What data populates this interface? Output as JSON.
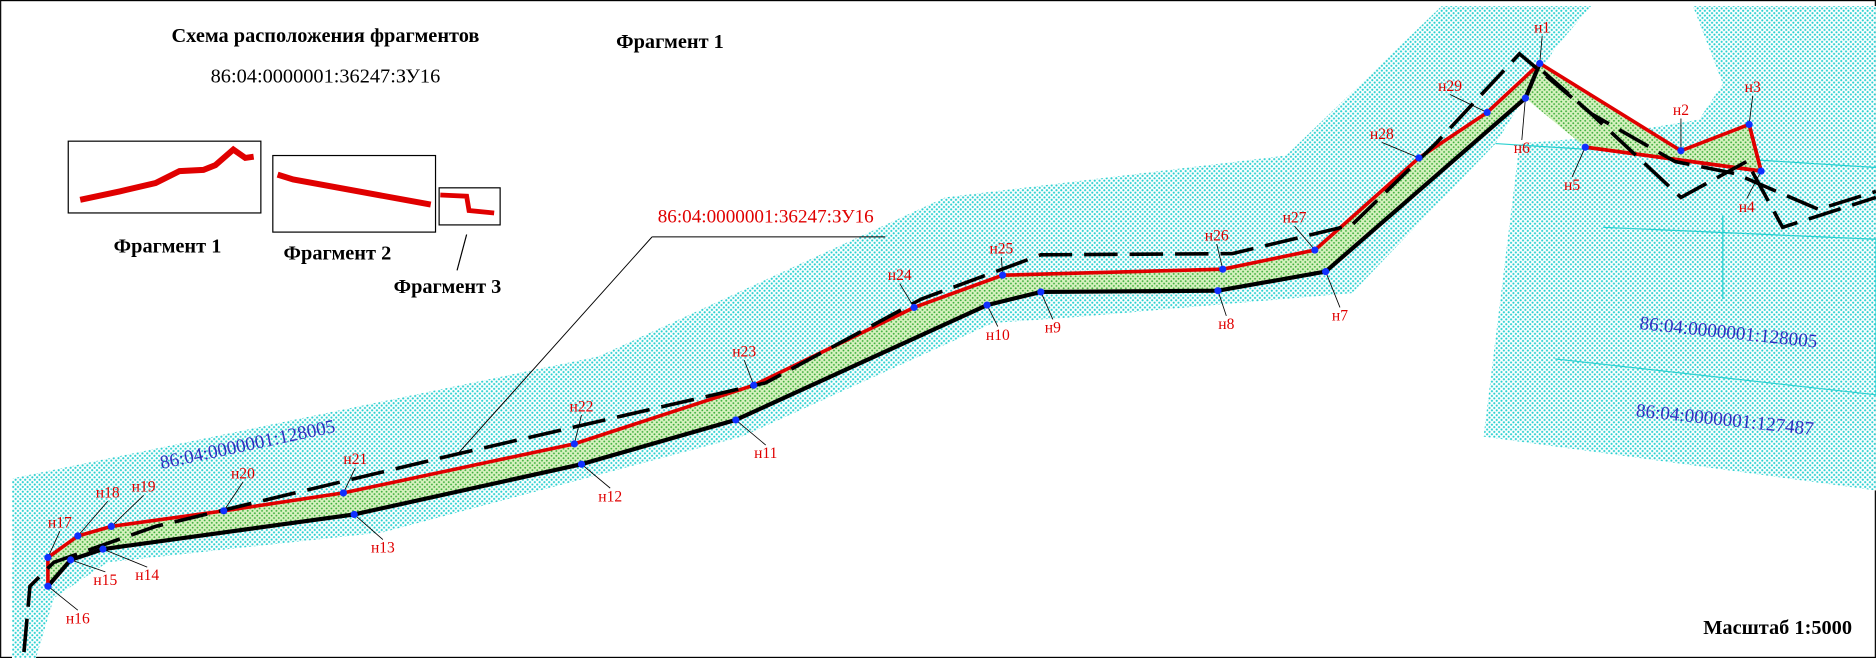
{
  "header": {
    "title": "Схема расположения фрагментов",
    "number": "86:04:0000001:36247:ЗУ16",
    "fragment": "Фрагмент 1"
  },
  "insets": [
    "Фрагмент 1",
    "Фрагмент 2",
    "Фрагмент 3"
  ],
  "parcel": "86:04:0000001:36247:ЗУ16",
  "neighbors": [
    "86:04:0000001:128005",
    "86:04:0000001:128005",
    "86:04:0000001:127487"
  ],
  "points": [
    "н1",
    "н2",
    "н3",
    "н4",
    "н5",
    "н6",
    "н7",
    "н8",
    "н9",
    "н10",
    "н11",
    "н12",
    "н13",
    "н14",
    "н15",
    "н16",
    "н17",
    "н18",
    "н19",
    "н20",
    "н21",
    "н22",
    "н23",
    "н24",
    "н25",
    "н26",
    "н27",
    "н28",
    "н29"
  ],
  "scale": "Масштаб 1:5000"
}
